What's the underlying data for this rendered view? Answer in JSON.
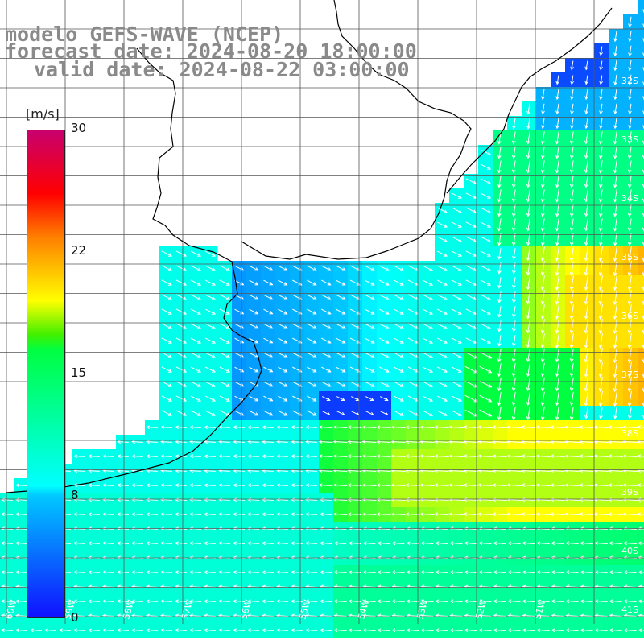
{
  "title": {
    "line1": "modelo GEFS-WAVE (NCEP)",
    "line2": "forecast date: 2024-08-20 18:00:00",
    "line3": "valid date: 2024-08-22 03:00:00"
  },
  "colorbar": {
    "units": "[m/s]",
    "ticks": [
      "30",
      "22",
      "15",
      "8",
      "0"
    ]
  },
  "axes": {
    "lat_labels": [
      "32S",
      "33S",
      "34S",
      "35S",
      "36S",
      "37S",
      "38S",
      "39S",
      "40S",
      "41S"
    ],
    "lon_labels": [
      "60W",
      "59W",
      "58W",
      "57W",
      "56W",
      "55W",
      "54W",
      "53W",
      "52W",
      "51W"
    ]
  },
  "colors": {
    "scale": [
      "#1010ff",
      "#00c8ff",
      "#00ffff",
      "#00ff40",
      "#ffff00",
      "#ff8000",
      "#ff0000",
      "#c8006e"
    ],
    "land": "#ffffff",
    "grid": "#555555",
    "arrow": "#ffffff"
  }
}
